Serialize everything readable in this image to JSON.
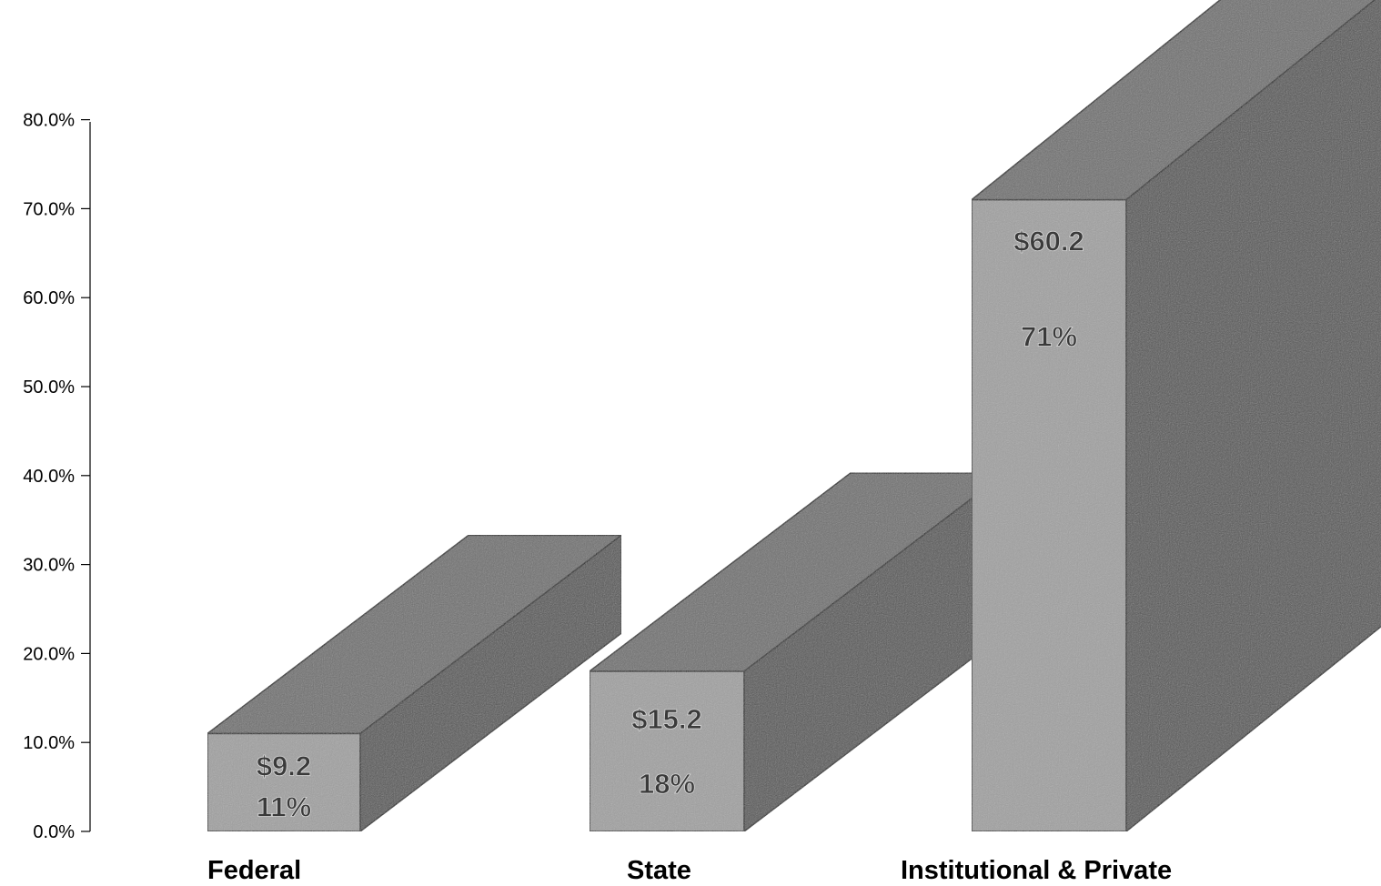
{
  "chart_data": {
    "type": "bar",
    "title": "",
    "xlabel": "",
    "ylabel": "",
    "ylim": [
      0,
      80
    ],
    "ytick_labels": [
      "0.0%",
      "10.0%",
      "20.0%",
      "30.0%",
      "40.0%",
      "50.0%",
      "60.0%",
      "70.0%",
      "80.0%"
    ],
    "categories": [
      "Federal",
      "State",
      "Institutional & Private"
    ],
    "values": [
      11,
      18,
      71
    ],
    "amount_labels": [
      "$9.2",
      "$15.2",
      "$60.2"
    ],
    "percent_labels": [
      "11%",
      "18%",
      "71%"
    ],
    "grid": false,
    "legend": "none",
    "colors": {
      "front": "#a0a0a0",
      "top": "#6e6e6e",
      "side": "#555555",
      "edge": "#1a1a1a",
      "label_fill": "#3a3a3a"
    }
  }
}
